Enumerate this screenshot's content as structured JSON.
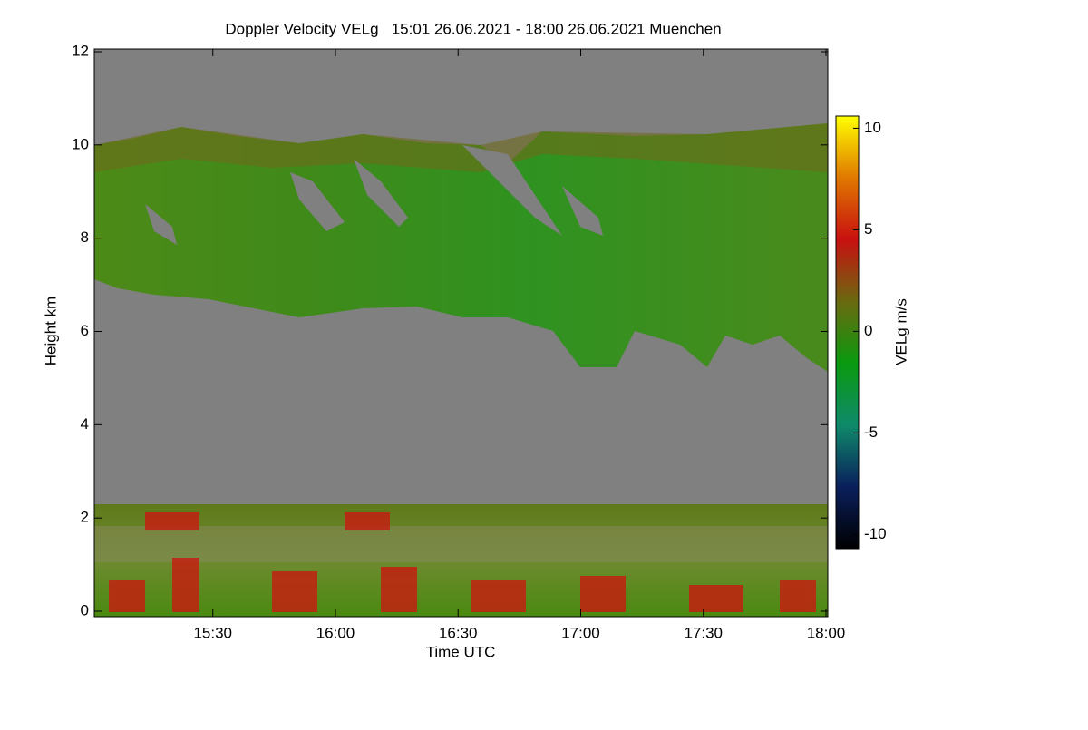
{
  "chart_data": {
    "type": "heatmap",
    "title": "Doppler Velocity VELg   15:01 26.06.2021 - 18:00 26.06.2021 Muenchen",
    "x_label": "Time UTC",
    "y_label": "Height km",
    "xlim": [
      901,
      1080
    ],
    "xticks": [
      {
        "value": 930,
        "label": "15:30"
      },
      {
        "value": 960,
        "label": "16:00"
      },
      {
        "value": 990,
        "label": "16:30"
      },
      {
        "value": 1020,
        "label": "17:00"
      },
      {
        "value": 1050,
        "label": "17:30"
      },
      {
        "value": 1080,
        "label": "18:00"
      }
    ],
    "ylim": [
      0,
      12
    ],
    "yticks": [
      0,
      2,
      4,
      6,
      8,
      10,
      12
    ],
    "colorbar": {
      "label": "VELg m/s",
      "lim": [
        -10.7,
        10.6
      ],
      "ticks": [
        -10,
        -5,
        0,
        5,
        10
      ],
      "colors": [
        "#000000",
        "#0a1f5c",
        "#0f8a6a",
        "#0a9a10",
        "#6a6a10",
        "#c81010",
        "#e07800",
        "#ffff00"
      ]
    },
    "background": "#808080"
  }
}
